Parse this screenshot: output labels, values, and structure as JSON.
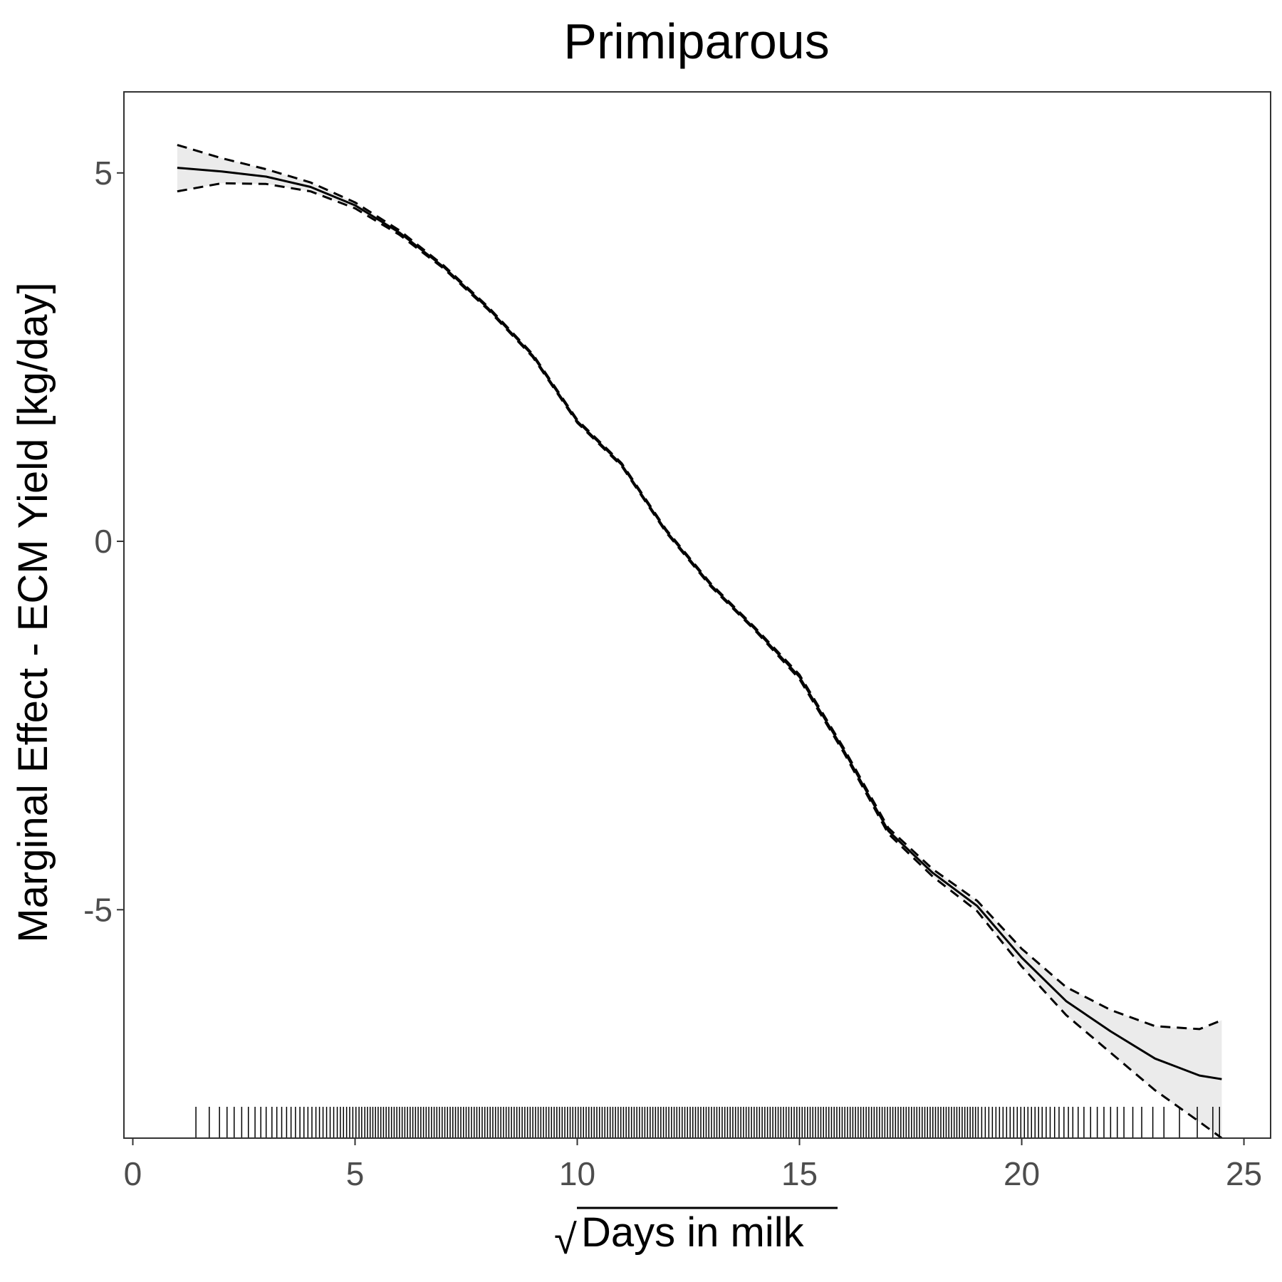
{
  "chart_data": {
    "type": "line",
    "title": "Primiparous",
    "xlabel": "Days in milk",
    "xlabel_radical": "√",
    "ylabel": "Marginal Effect - ECM Yield [kg/day]",
    "xlim": [
      -0.2,
      25.6
    ],
    "ylim": [
      -8.1,
      6.1
    ],
    "xticks": [
      0,
      5,
      10,
      15,
      20,
      25
    ],
    "xtick_labels": [
      "0",
      "5",
      "10",
      "15",
      "20",
      "25"
    ],
    "yticks": [
      -5,
      0,
      5
    ],
    "ytick_labels": [
      "-5",
      "0",
      "5"
    ],
    "grid": false,
    "series": [
      {
        "role": "estimate",
        "style": "solid",
        "x": [
          1,
          2,
          3,
          4,
          5,
          6,
          7,
          8,
          9,
          10,
          11,
          12,
          13,
          14,
          15,
          16,
          17,
          18,
          19,
          20,
          21,
          22,
          23,
          24,
          24.5
        ],
        "y": [
          5.07,
          5.02,
          4.95,
          4.81,
          4.56,
          4.19,
          3.72,
          3.16,
          2.52,
          1.63,
          1.04,
          0.14,
          -0.59,
          -1.19,
          -1.84,
          -2.84,
          -3.93,
          -4.5,
          -4.95,
          -5.65,
          -6.24,
          -6.65,
          -7.02,
          -7.25,
          -7.3
        ]
      },
      {
        "role": "upper",
        "style": "dashed",
        "x": [
          1,
          2,
          3,
          4,
          5,
          6,
          7,
          8,
          9,
          10,
          11,
          12,
          13,
          14,
          15,
          16,
          17,
          18,
          19,
          20,
          21,
          22,
          23,
          24,
          24.5
        ],
        "y": [
          5.38,
          5.2,
          5.05,
          4.87,
          4.6,
          4.22,
          3.74,
          3.18,
          2.54,
          1.65,
          1.06,
          0.16,
          -0.57,
          -1.17,
          -1.81,
          -2.81,
          -3.89,
          -4.45,
          -4.88,
          -5.53,
          -6.05,
          -6.36,
          -6.58,
          -6.62,
          -6.5
        ]
      },
      {
        "role": "lower",
        "style": "dashed",
        "x": [
          1,
          2,
          3,
          4,
          5,
          6,
          7,
          8,
          9,
          10,
          11,
          12,
          13,
          14,
          15,
          16,
          17,
          18,
          19,
          20,
          21,
          22,
          23,
          24,
          24.5
        ],
        "y": [
          4.75,
          4.86,
          4.85,
          4.75,
          4.52,
          4.16,
          3.7,
          3.14,
          2.5,
          1.61,
          1.02,
          0.12,
          -0.61,
          -1.21,
          -1.87,
          -2.87,
          -3.97,
          -4.55,
          -5.02,
          -5.77,
          -6.43,
          -6.94,
          -7.45,
          -7.88,
          -8.1
        ]
      }
    ],
    "ribbon_color": "#ebebeb",
    "line_color": "#000000",
    "rug": [
      1.42,
      1.72,
      1.95,
      2.12,
      2.28,
      2.45,
      2.6,
      2.75,
      2.88,
      3.0,
      3.13,
      3.24,
      3.35,
      3.46,
      3.56,
      3.66,
      3.76,
      3.85,
      3.94,
      4.03,
      4.12,
      4.2,
      4.28,
      4.36,
      4.44,
      4.52,
      4.6,
      4.67,
      4.74,
      4.81,
      4.88,
      4.95,
      5.02,
      5.09,
      5.15,
      5.22,
      5.28,
      5.34,
      5.4,
      5.46,
      5.52,
      5.58,
      5.64,
      5.7,
      5.76,
      5.82,
      5.88,
      5.94,
      6.0,
      6.06,
      6.12,
      6.18,
      6.24,
      6.3,
      6.36,
      6.42,
      6.48,
      6.54,
      6.6,
      6.66,
      6.72,
      6.78,
      6.84,
      6.9,
      6.96,
      7.02,
      7.08,
      7.14,
      7.2,
      7.26,
      7.32,
      7.38,
      7.44,
      7.5,
      7.56,
      7.62,
      7.68,
      7.74,
      7.8,
      7.86,
      7.92,
      7.98,
      8.04,
      8.1,
      8.16,
      8.22,
      8.28,
      8.34,
      8.4,
      8.46,
      8.52,
      8.58,
      8.64,
      8.7,
      8.76,
      8.82,
      8.88,
      8.94,
      9.0,
      9.06,
      9.12,
      9.18,
      9.24,
      9.3,
      9.36,
      9.42,
      9.48,
      9.54,
      9.6,
      9.66,
      9.72,
      9.78,
      9.84,
      9.9,
      9.96,
      10.02,
      10.08,
      10.14,
      10.2,
      10.26,
      10.32,
      10.38,
      10.44,
      10.5,
      10.56,
      10.62,
      10.68,
      10.74,
      10.8,
      10.86,
      10.92,
      10.98,
      11.04,
      11.1,
      11.16,
      11.22,
      11.28,
      11.34,
      11.4,
      11.46,
      11.52,
      11.58,
      11.64,
      11.7,
      11.76,
      11.82,
      11.88,
      11.94,
      12.0,
      12.06,
      12.12,
      12.18,
      12.24,
      12.3,
      12.36,
      12.42,
      12.48,
      12.54,
      12.6,
      12.66,
      12.72,
      12.78,
      12.84,
      12.9,
      12.96,
      13.02,
      13.08,
      13.14,
      13.2,
      13.26,
      13.32,
      13.38,
      13.44,
      13.5,
      13.56,
      13.62,
      13.68,
      13.74,
      13.8,
      13.86,
      13.92,
      13.98,
      14.04,
      14.1,
      14.16,
      14.22,
      14.28,
      14.34,
      14.4,
      14.46,
      14.52,
      14.58,
      14.64,
      14.7,
      14.76,
      14.82,
      14.88,
      14.94,
      15.0,
      15.06,
      15.12,
      15.18,
      15.24,
      15.3,
      15.36,
      15.42,
      15.48,
      15.54,
      15.6,
      15.66,
      15.72,
      15.78,
      15.84,
      15.9,
      15.96,
      16.02,
      16.08,
      16.14,
      16.2,
      16.26,
      16.32,
      16.38,
      16.44,
      16.5,
      16.56,
      16.62,
      16.68,
      16.74,
      16.8,
      16.86,
      16.92,
      16.98,
      17.04,
      17.1,
      17.16,
      17.22,
      17.28,
      17.34,
      17.4,
      17.46,
      17.52,
      17.58,
      17.64,
      17.7,
      17.76,
      17.82,
      17.88,
      17.94,
      18.0,
      18.06,
      18.12,
      18.18,
      18.24,
      18.3,
      18.36,
      18.42,
      18.48,
      18.54,
      18.6,
      18.66,
      18.72,
      18.78,
      18.84,
      18.9,
      18.96,
      19.02,
      19.1,
      19.18,
      19.26,
      19.34,
      19.42,
      19.5,
      19.58,
      19.66,
      19.74,
      19.82,
      19.9,
      19.98,
      20.06,
      20.14,
      20.22,
      20.3,
      20.38,
      20.46,
      20.55,
      20.64,
      20.74,
      20.84,
      20.95,
      21.05,
      21.15,
      21.27,
      21.4,
      21.55,
      21.7,
      21.85,
      22.0,
      22.15,
      22.3,
      22.5,
      22.7,
      22.95,
      23.2,
      23.55,
      23.95,
      24.3,
      24.45
    ]
  }
}
